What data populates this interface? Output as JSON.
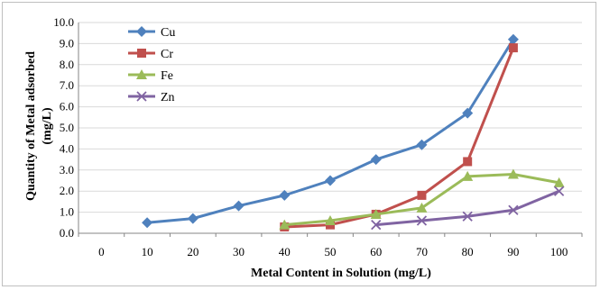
{
  "chart_data": {
    "type": "line",
    "title": "",
    "xlabel": "Metal Content in Solution (mg/L)",
    "ylabel_lines": [
      "Quantity  of Metal adsorbed",
      "(mg/L)"
    ],
    "x_categories": [
      "0",
      "10",
      "20",
      "30",
      "40",
      "50",
      "60",
      "70",
      "80",
      "90",
      "100"
    ],
    "y_ticks": [
      "0.0",
      "1.0",
      "2.0",
      "3.0",
      "4.0",
      "5.0",
      "6.0",
      "7.0",
      "8.0",
      "9.0",
      "10.0"
    ],
    "ylim": [
      0,
      10
    ],
    "grid": "horizontal",
    "legend_position": "top-left",
    "series": [
      {
        "name": "Cu",
        "color": "#4f81bd",
        "marker": "diamond",
        "x": [
          10,
          20,
          30,
          40,
          50,
          60,
          70,
          80,
          90
        ],
        "y": [
          0.5,
          0.7,
          1.3,
          1.8,
          2.5,
          3.5,
          4.2,
          5.7,
          9.2
        ]
      },
      {
        "name": "Cr",
        "color": "#c0504d",
        "marker": "square",
        "x": [
          40,
          50,
          60,
          70,
          80,
          90
        ],
        "y": [
          0.3,
          0.4,
          0.9,
          1.8,
          3.4,
          8.8
        ]
      },
      {
        "name": "Fe",
        "color": "#9bbb59",
        "marker": "triangle",
        "x": [
          40,
          50,
          60,
          70,
          80,
          90,
          100
        ],
        "y": [
          0.4,
          0.6,
          0.9,
          1.2,
          2.7,
          2.8,
          2.4
        ]
      },
      {
        "name": "Zn",
        "color": "#8064a2",
        "marker": "x",
        "x": [
          60,
          70,
          80,
          90,
          100
        ],
        "y": [
          0.4,
          0.6,
          0.8,
          1.1,
          2.0
        ]
      }
    ]
  }
}
